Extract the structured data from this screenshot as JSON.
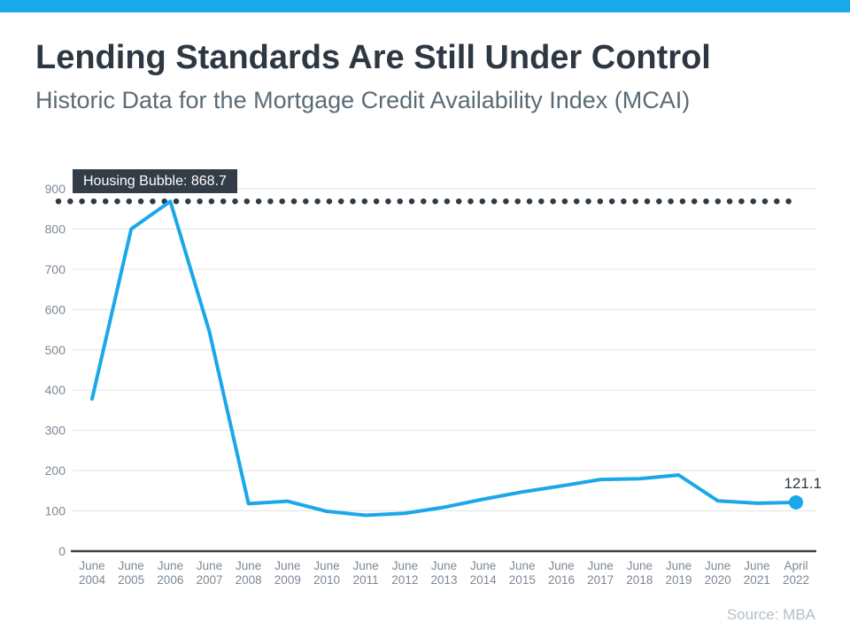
{
  "page": {
    "accent_bar_color": "#18a9eb",
    "background": "#ffffff"
  },
  "header": {
    "title": "Lending Standards Are Still Under Control",
    "subtitle": "Historic Data for the Mortgage Credit Availability Index (MCAI)"
  },
  "footer": {
    "source": "Source: MBA"
  },
  "chart_data": {
    "type": "line",
    "title": "Historic Data for the Mortgage Credit Availability Index (MCAI)",
    "categories": [
      "June 2004",
      "June 2005",
      "June 2006",
      "June 2007",
      "June 2008",
      "June 2009",
      "June 2010",
      "June 2011",
      "June 2012",
      "June 2013",
      "June 2014",
      "June 2015",
      "June 2016",
      "June 2017",
      "June 2018",
      "June 2019",
      "June 2020",
      "June 2021",
      "April 2022"
    ],
    "values": [
      378,
      800,
      868.7,
      545,
      118,
      124,
      99,
      89,
      94,
      109,
      129,
      147,
      162,
      178,
      180,
      189,
      125,
      119,
      121.1
    ],
    "y_ticks": [
      0,
      100,
      200,
      300,
      400,
      500,
      600,
      700,
      800,
      900
    ],
    "ylim": [
      0,
      900
    ],
    "grid": "horizontal",
    "legend": "none",
    "threshold": {
      "label": "Housing Bubble: 868.7",
      "value": 868.7,
      "style": "dotted"
    },
    "end_label": "121.1",
    "colors": {
      "line": "#1ba7e9",
      "dots": "#2f3a44",
      "grid": "#e2e2e2",
      "axis": "#39434d",
      "annotation_bg": "#333d47",
      "annotation_text": "#ffffff",
      "tick_text": "#7d8894"
    }
  }
}
